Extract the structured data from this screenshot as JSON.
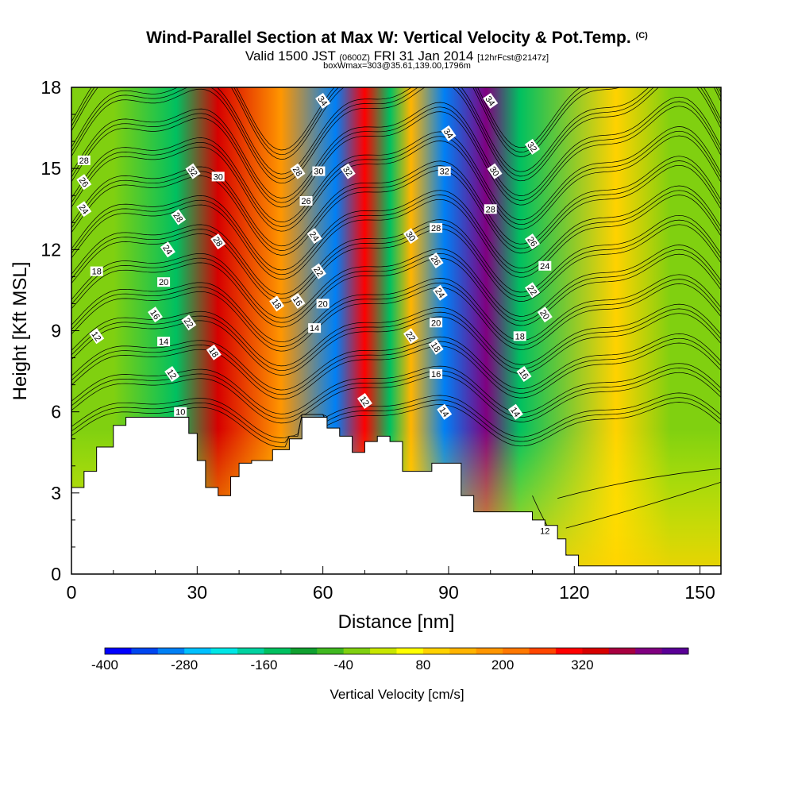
{
  "header": {
    "title": "Wind-Parallel Section at Max W: Vertical Velocity & Pot.Temp.",
    "title_mark": "(C)",
    "valid_a": "Valid 1500 JST",
    "valid_b": "(0600Z)",
    "valid_c": "FRI 31 Jan 2014",
    "valid_d": "[12hrFcst@2147z]",
    "box": "boxWmax=303@35.61,139.00,1796m"
  },
  "chart_data": {
    "type": "heatmap",
    "xlabel": "Distance [nm]",
    "ylabel": "Height [Kft MSL]",
    "xlim": [
      0,
      155
    ],
    "ylim": [
      0,
      18
    ],
    "x_ticks": [
      "0",
      "30",
      "60",
      "90",
      "120",
      "150"
    ],
    "y_ticks": [
      "0",
      "3",
      "6",
      "9",
      "12",
      "15",
      "18"
    ],
    "colorbar": {
      "label": "Vertical Velocity [cm/s]",
      "tick_labels": [
        "-400",
        "-280",
        "-160",
        "-40",
        "80",
        "200",
        "320"
      ],
      "colors": [
        "#0000ff",
        "#0046f0",
        "#0080f5",
        "#00c0ff",
        "#00e6e6",
        "#00d2a0",
        "#00c060",
        "#10a030",
        "#40b820",
        "#80d010",
        "#c8e600",
        "#ffff00",
        "#ffd200",
        "#ffb400",
        "#ff9600",
        "#ff7800",
        "#ff4600",
        "#ff0000",
        "#d70000",
        "#a80040",
        "#800080",
        "#5a0096"
      ]
    },
    "velocity_bands": [
      {
        "x": 10,
        "w": -70
      },
      {
        "x": 25,
        "w": -150
      },
      {
        "x": 35,
        "w": 260
      },
      {
        "x": 50,
        "w": 120
      },
      {
        "x": 63,
        "w": -300
      },
      {
        "x": 70,
        "w": 250
      },
      {
        "x": 76,
        "w": -180
      },
      {
        "x": 81,
        "w": 80
      },
      {
        "x": 89,
        "w": -320
      },
      {
        "x": 99,
        "w": 360
      },
      {
        "x": 107,
        "w": -150
      },
      {
        "x": 130,
        "w": 50
      },
      {
        "x": 143,
        "w": -40
      }
    ],
    "terrain": [
      [
        0,
        3.2
      ],
      [
        3,
        3.8
      ],
      [
        6,
        4.7
      ],
      [
        10,
        5.5
      ],
      [
        13,
        5.8
      ],
      [
        18,
        5.8
      ],
      [
        25,
        5.8
      ],
      [
        28,
        5.2
      ],
      [
        30,
        4.2
      ],
      [
        32,
        3.2
      ],
      [
        35,
        2.9
      ],
      [
        38,
        3.6
      ],
      [
        40,
        4.1
      ],
      [
        43,
        4.2
      ],
      [
        48,
        4.6
      ],
      [
        52,
        5.0
      ],
      [
        55,
        5.8
      ],
      [
        58,
        5.8
      ],
      [
        61,
        5.4
      ],
      [
        64,
        5.1
      ],
      [
        67,
        4.5
      ],
      [
        70,
        4.9
      ],
      [
        73,
        5.1
      ],
      [
        76,
        4.9
      ],
      [
        79,
        3.8
      ],
      [
        83,
        3.8
      ],
      [
        86,
        4.1
      ],
      [
        89,
        4.1
      ],
      [
        93,
        2.9
      ],
      [
        96,
        2.3
      ],
      [
        100,
        2.3
      ],
      [
        105,
        2.3
      ],
      [
        110,
        2.0
      ],
      [
        113,
        1.8
      ],
      [
        116,
        1.3
      ],
      [
        118,
        0.7
      ],
      [
        121,
        0.3
      ],
      [
        125,
        0.3
      ],
      [
        135,
        0.3
      ],
      [
        145,
        0.3
      ],
      [
        155,
        0.3
      ]
    ],
    "theta_levels": [
      "10",
      "12",
      "14",
      "16",
      "18",
      "20",
      "22",
      "24",
      "26",
      "28",
      "30",
      "32",
      "34"
    ],
    "contour_labels": [
      {
        "x": 3,
        "y": 15.3,
        "t": "28"
      },
      {
        "x": 3,
        "y": 14.5,
        "t": "26"
      },
      {
        "x": 3,
        "y": 13.5,
        "t": "24"
      },
      {
        "x": 6,
        "y": 11.2,
        "t": "18"
      },
      {
        "x": 6,
        "y": 8.8,
        "t": "12"
      },
      {
        "x": 29,
        "y": 14.9,
        "t": "32"
      },
      {
        "x": 35,
        "y": 14.7,
        "t": "30"
      },
      {
        "x": 25.5,
        "y": 13.2,
        "t": "28"
      },
      {
        "x": 23,
        "y": 12.0,
        "t": "24"
      },
      {
        "x": 22,
        "y": 10.8,
        "t": "20"
      },
      {
        "x": 20,
        "y": 9.6,
        "t": "16"
      },
      {
        "x": 28,
        "y": 9.3,
        "t": "22"
      },
      {
        "x": 22,
        "y": 8.6,
        "t": "14"
      },
      {
        "x": 34,
        "y": 8.2,
        "t": "18"
      },
      {
        "x": 24,
        "y": 7.4,
        "t": "12"
      },
      {
        "x": 26,
        "y": 6.0,
        "t": "10"
      },
      {
        "x": 35,
        "y": 12.3,
        "t": "28"
      },
      {
        "x": 54,
        "y": 14.9,
        "t": "28"
      },
      {
        "x": 59,
        "y": 14.9,
        "t": "30"
      },
      {
        "x": 66,
        "y": 14.9,
        "t": "32"
      },
      {
        "x": 60,
        "y": 17.5,
        "t": "34"
      },
      {
        "x": 56,
        "y": 13.8,
        "t": "26"
      },
      {
        "x": 58,
        "y": 12.5,
        "t": "24"
      },
      {
        "x": 59,
        "y": 11.2,
        "t": "22"
      },
      {
        "x": 60,
        "y": 10.0,
        "t": "20"
      },
      {
        "x": 54,
        "y": 10.1,
        "t": "16"
      },
      {
        "x": 49,
        "y": 10.0,
        "t": "18"
      },
      {
        "x": 58,
        "y": 9.1,
        "t": "14"
      },
      {
        "x": 70,
        "y": 6.4,
        "t": "12"
      },
      {
        "x": 81,
        "y": 12.5,
        "t": "30"
      },
      {
        "x": 87,
        "y": 12.8,
        "t": "28"
      },
      {
        "x": 87,
        "y": 11.6,
        "t": "26"
      },
      {
        "x": 88,
        "y": 10.4,
        "t": "24"
      },
      {
        "x": 87,
        "y": 9.3,
        "t": "20"
      },
      {
        "x": 81,
        "y": 8.8,
        "t": "22"
      },
      {
        "x": 87,
        "y": 8.4,
        "t": "18"
      },
      {
        "x": 87,
        "y": 7.4,
        "t": "16"
      },
      {
        "x": 89,
        "y": 6.0,
        "t": "14"
      },
      {
        "x": 90,
        "y": 16.3,
        "t": "34"
      },
      {
        "x": 89,
        "y": 14.9,
        "t": "32"
      },
      {
        "x": 100,
        "y": 17.5,
        "t": "34"
      },
      {
        "x": 101,
        "y": 14.9,
        "t": "30"
      },
      {
        "x": 100,
        "y": 13.5,
        "t": "28"
      },
      {
        "x": 110,
        "y": 15.8,
        "t": "32"
      },
      {
        "x": 110,
        "y": 12.3,
        "t": "26"
      },
      {
        "x": 113,
        "y": 11.4,
        "t": "24"
      },
      {
        "x": 110,
        "y": 10.5,
        "t": "22"
      },
      {
        "x": 113,
        "y": 9.6,
        "t": "20"
      },
      {
        "x": 107,
        "y": 8.8,
        "t": "18"
      },
      {
        "x": 108,
        "y": 7.4,
        "t": "16"
      },
      {
        "x": 106,
        "y": 6.0,
        "t": "14"
      },
      {
        "x": 113,
        "y": 1.6,
        "t": "12"
      }
    ]
  }
}
